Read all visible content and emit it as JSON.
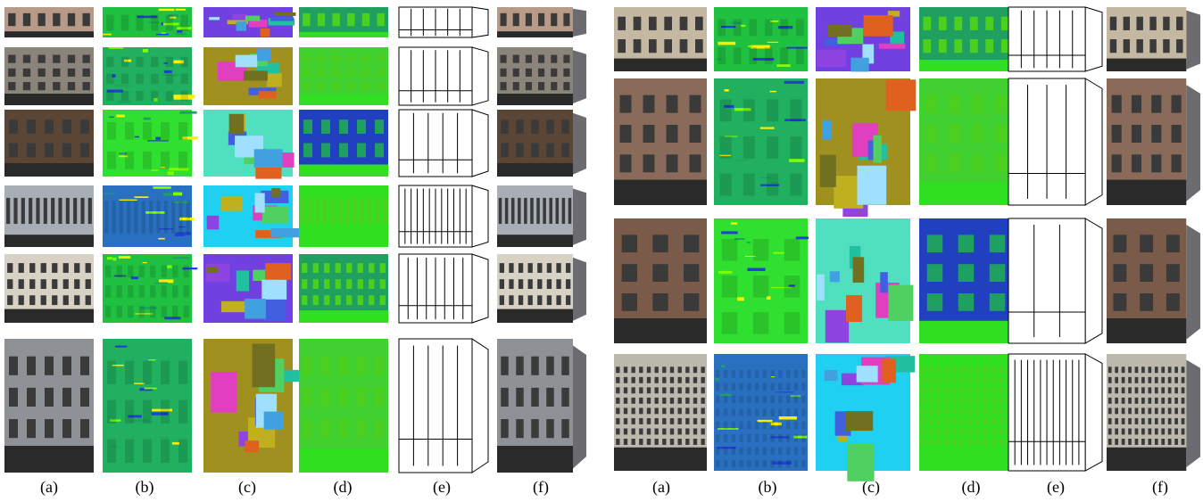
{
  "panels": [
    {
      "labels": [
        "(a)",
        "(b)",
        "(c)",
        "(d)",
        "(e)",
        "(f)"
      ]
    },
    {
      "labels": [
        "(a)",
        "(b)",
        "(c)",
        "(d)",
        "(e)",
        "(f)"
      ]
    }
  ]
}
